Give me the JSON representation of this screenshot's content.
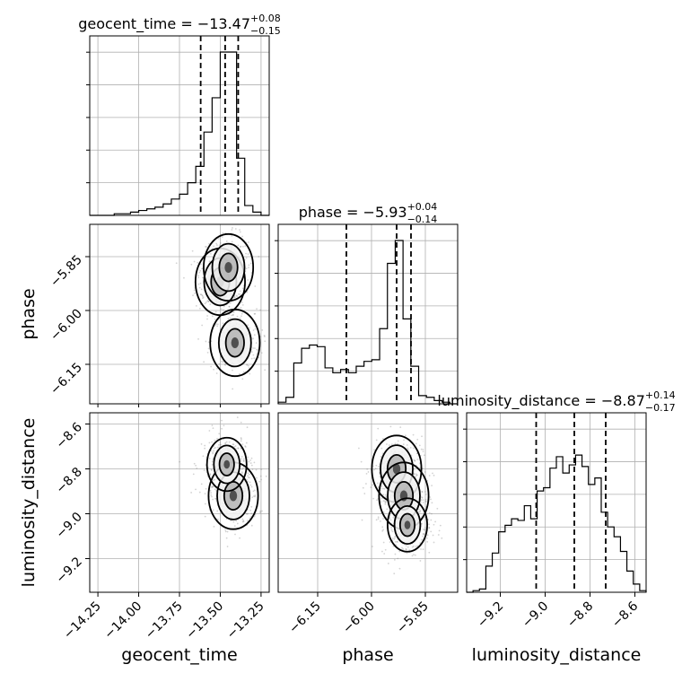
{
  "chart_data": {
    "type": "corner",
    "parameters": [
      {
        "key": "geocent_time",
        "title_prefix": "geocent_time = ",
        "median": "−13.47",
        "plus": "+0.08",
        "minus": "−0.15",
        "xlabel": "geocent_time",
        "range": [
          -14.3,
          -13.2
        ],
        "ticks": [
          -14.25,
          -14.0,
          -13.75,
          -13.5,
          -13.25
        ],
        "tick_labels": [
          "−14.25",
          "−14.00",
          "−13.75",
          "−13.50",
          "−13.25"
        ],
        "quantiles": [
          -13.62,
          -13.47,
          -13.39
        ],
        "hist_counts": [
          0,
          0,
          0,
          1,
          1,
          2,
          3,
          4,
          5,
          7,
          10,
          13,
          20,
          30,
          51,
          72,
          100,
          100,
          35,
          6,
          2,
          0
        ]
      },
      {
        "key": "phase",
        "title_prefix": "phase = ",
        "median": "−5.93",
        "plus": "+0.04",
        "minus": "−0.14",
        "xlabel": "phase",
        "ylabel": "phase",
        "range": [
          -6.26,
          -5.76
        ],
        "ticks": [
          -6.15,
          -6.0,
          -5.85
        ],
        "tick_labels": [
          "−6.15",
          "−6.00",
          "−5.85"
        ],
        "quantiles": [
          -6.07,
          -5.93,
          -5.89
        ],
        "hist_counts": [
          1,
          4,
          25,
          34,
          36,
          35,
          22,
          19,
          21,
          19,
          23,
          26,
          27,
          46,
          86,
          100,
          52,
          23,
          5,
          4,
          2,
          1,
          0
        ]
      },
      {
        "key": "luminosity_distance",
        "title_prefix": "luminosity_distance = ",
        "median": "−8.87",
        "plus": "+0.14",
        "minus": "−0.17",
        "xlabel": "luminosity_distance",
        "ylabel": "luminosity_distance",
        "range": [
          -9.35,
          -8.55
        ],
        "ticks": [
          -9.2,
          -9.0,
          -8.8,
          -8.6
        ],
        "tick_labels": [
          "−9.2",
          "−9.0",
          "−8.8",
          "−8.6"
        ],
        "quantiles": [
          -9.04,
          -8.87,
          -8.73
        ],
        "hist_counts": [
          0,
          1,
          2,
          16,
          24,
          37,
          41,
          45,
          44,
          53,
          45,
          62,
          64,
          76,
          83,
          73,
          78,
          84,
          77,
          66,
          70,
          49,
          40,
          34,
          25,
          13,
          5,
          1
        ]
      }
    ],
    "pair_panels": [
      {
        "x": "geocent_time",
        "y": "phase",
        "modes": [
          {
            "x": -13.5,
            "y": -5.92,
            "level": 3
          },
          {
            "x": -13.45,
            "y": -5.88,
            "level": 3
          },
          {
            "x": -13.41,
            "y": -6.09,
            "level": 3
          }
        ]
      },
      {
        "x": "geocent_time",
        "y": "luminosity_distance",
        "modes": [
          {
            "x": -13.42,
            "y": -8.92,
            "level": 3
          },
          {
            "x": -13.46,
            "y": -8.78,
            "level": 2
          }
        ]
      },
      {
        "x": "phase",
        "y": "luminosity_distance",
        "modes": [
          {
            "x": -5.93,
            "y": -8.8,
            "level": 3
          },
          {
            "x": -5.91,
            "y": -8.92,
            "level": 3
          },
          {
            "x": -5.9,
            "y": -9.05,
            "level": 2
          }
        ]
      }
    ],
    "grid": true,
    "quantile_style": "dashed"
  },
  "colors": {
    "line": "#000000",
    "grid": "#b0b0b0",
    "sample": "#808080",
    "density_light": "#f2f2f2",
    "density_mid": "#b4b4b4",
    "density_dark": "#3c3c3c"
  }
}
